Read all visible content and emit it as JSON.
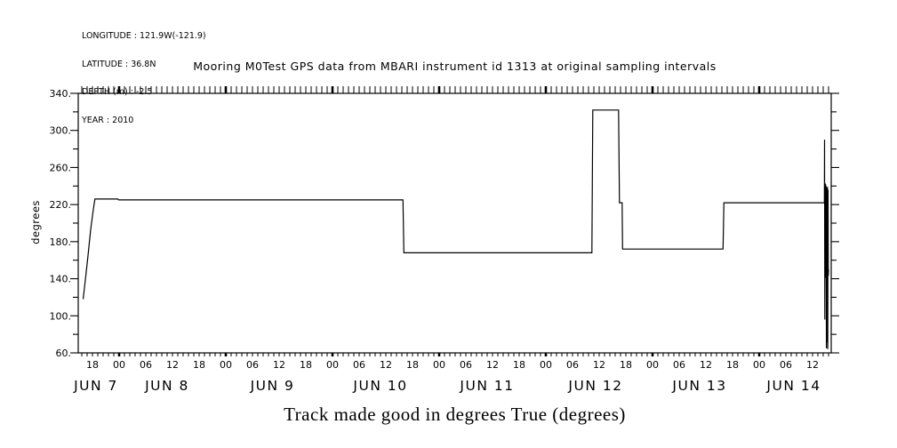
{
  "page": {
    "header": {
      "lines": [
        "LONGITUDE : 121.9W(-121.9)",
        "LATITUDE : 36.8N",
        "DEPTH (m) : -2.5",
        "YEAR : 2010"
      ]
    }
  },
  "chart_data": {
    "type": "line",
    "title": "Mooring M0Test GPS data from MBARI instrument id 1313 at original sampling intervals",
    "caption": "Track made good in degrees True (degrees)",
    "ylabel": "degrees",
    "ylim": [
      60,
      340
    ],
    "grid": false,
    "legend": "none",
    "colors": {
      "background": "#ffffff",
      "foreground": "#000000"
    },
    "y_axis": {
      "minor_tick_step": 20,
      "major_tick_step": 40,
      "tick_labels": [
        {
          "v": 60,
          "label": "60."
        },
        {
          "v": 100,
          "label": "100."
        },
        {
          "v": 140,
          "label": "140."
        },
        {
          "v": 180,
          "label": "180."
        },
        {
          "v": 220,
          "label": "220."
        },
        {
          "v": 260,
          "label": "260."
        },
        {
          "v": 300,
          "label": "300."
        },
        {
          "v": 340,
          "label": "340."
        }
      ]
    },
    "x_axis": {
      "unit": "hours from JUN 7 00:00, year 2010",
      "range_h": [
        14.8,
        184.2
      ],
      "minor_tick_step_h": 1.2,
      "bold_tick_every_h": 24,
      "hour_labels": [
        {
          "h": 18,
          "label": "18"
        },
        {
          "h": 24,
          "label": "00"
        },
        {
          "h": 30,
          "label": "06"
        },
        {
          "h": 36,
          "label": "12"
        },
        {
          "h": 42,
          "label": "18"
        },
        {
          "h": 48,
          "label": "00"
        },
        {
          "h": 54,
          "label": "06"
        },
        {
          "h": 60,
          "label": "12"
        },
        {
          "h": 66,
          "label": "18"
        },
        {
          "h": 72,
          "label": "00"
        },
        {
          "h": 78,
          "label": "06"
        },
        {
          "h": 84,
          "label": "12"
        },
        {
          "h": 90,
          "label": "18"
        },
        {
          "h": 96,
          "label": "00"
        },
        {
          "h": 102,
          "label": "06"
        },
        {
          "h": 108,
          "label": "12"
        },
        {
          "h": 114,
          "label": "18"
        },
        {
          "h": 120,
          "label": "00"
        },
        {
          "h": 126,
          "label": "06"
        },
        {
          "h": 132,
          "label": "12"
        },
        {
          "h": 138,
          "label": "18"
        },
        {
          "h": 144,
          "label": "00"
        },
        {
          "h": 150,
          "label": "06"
        },
        {
          "h": 156,
          "label": "12"
        },
        {
          "h": 162,
          "label": "18"
        },
        {
          "h": 168,
          "label": "00"
        },
        {
          "h": 174,
          "label": "06"
        },
        {
          "h": 180,
          "label": "12"
        }
      ],
      "date_labels": [
        {
          "h": 18.8,
          "label": "JUN 7"
        },
        {
          "h": 34.8,
          "label": "JUN 8"
        },
        {
          "h": 58.5,
          "label": "JUN 9"
        },
        {
          "h": 82.8,
          "label": "JUN 10"
        },
        {
          "h": 106.8,
          "label": "JUN 11"
        },
        {
          "h": 131.2,
          "label": "JUN 12"
        },
        {
          "h": 154.6,
          "label": "JUN 13"
        },
        {
          "h": 175.8,
          "label": "JUN 14"
        }
      ]
    },
    "series": [
      {
        "name": "track-made-good",
        "points": [
          [
            15.9,
            118
          ],
          [
            16.1,
            126
          ],
          [
            16.5,
            143
          ],
          [
            17.0,
            165
          ],
          [
            17.6,
            193
          ],
          [
            18.2,
            215
          ],
          [
            18.55,
            226
          ],
          [
            23.7,
            226
          ],
          [
            23.9,
            225
          ],
          [
            87.85,
            225
          ],
          [
            87.95,
            196
          ],
          [
            88.05,
            168
          ],
          [
            130.35,
            168
          ],
          [
            130.45,
            245
          ],
          [
            130.55,
            322
          ],
          [
            136.35,
            322
          ],
          [
            136.45,
            272
          ],
          [
            136.55,
            222
          ],
          [
            137.15,
            222
          ],
          [
            137.25,
            172
          ],
          [
            159.85,
            172
          ],
          [
            159.95,
            196
          ],
          [
            160.05,
            222
          ],
          [
            182.65,
            222
          ],
          [
            182.7,
            290
          ],
          [
            182.76,
            96
          ],
          [
            182.82,
            243
          ],
          [
            182.88,
            141
          ],
          [
            182.94,
            242
          ],
          [
            183.0,
            143
          ],
          [
            183.06,
            240
          ],
          [
            183.12,
            65
          ],
          [
            183.18,
            238
          ],
          [
            183.24,
            141
          ],
          [
            183.3,
            71
          ],
          [
            183.36,
            239
          ],
          [
            183.42,
            64
          ],
          [
            183.48,
            236
          ],
          [
            183.54,
            143
          ],
          [
            183.6,
            150
          ]
        ]
      }
    ]
  }
}
